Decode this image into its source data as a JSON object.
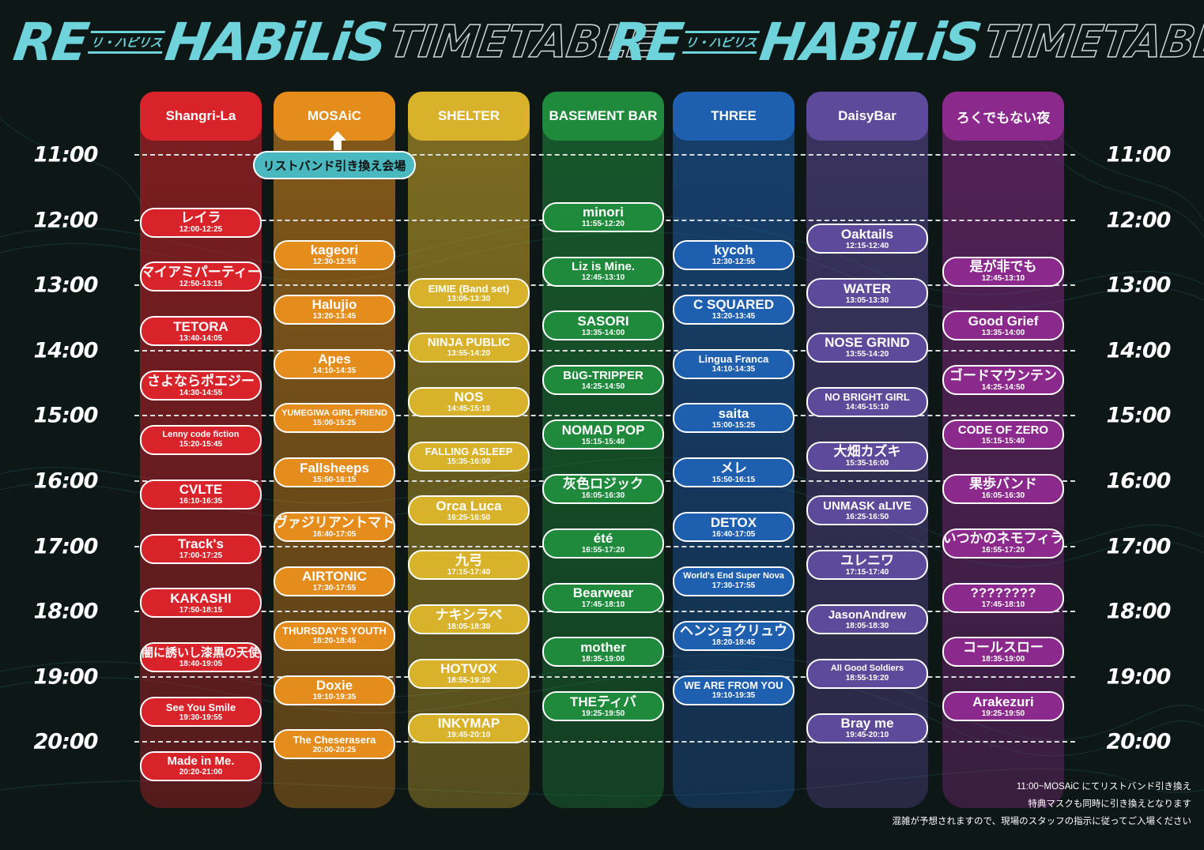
{
  "banner": {
    "logo_text": "RE",
    "logo_kana": "リ・ハビリス",
    "logo_rest": "HABiLiS",
    "timetable_word": "TIMETABLE"
  },
  "time_labels": [
    "11:00",
    "12:00",
    "13:00",
    "14:00",
    "15:00",
    "16:00",
    "17:00",
    "18:00",
    "19:00",
    "20:00"
  ],
  "stages": [
    {
      "name": "Shangri-La",
      "color": "#d8232a",
      "slots": [
        {
          "artist": "レイラ",
          "time": "12:00-12:25"
        },
        {
          "artist": "マイアミパーティー",
          "time": "12:50-13:15"
        },
        {
          "artist": "TETORA",
          "time": "13:40-14:05"
        },
        {
          "artist": "さよならポエジー",
          "time": "14:30-14:55"
        },
        {
          "artist": "Lenny code fiction",
          "time": "15:20-15:45"
        },
        {
          "artist": "CVLTE",
          "time": "16:10-16:35"
        },
        {
          "artist": "Track's",
          "time": "17:00-17:25"
        },
        {
          "artist": "KAKASHI",
          "time": "17:50-18:15"
        },
        {
          "artist": "夕闇に誘いし漆黒の天使達",
          "time": "18:40-19:05"
        },
        {
          "artist": "See You Smile",
          "time": "19:30-19:55"
        },
        {
          "artist": "Made in Me.",
          "time": "20:20-21:00"
        }
      ]
    },
    {
      "name": "MOSAiC",
      "color": "#e48c1c",
      "slots": [
        {
          "artist": "kageori",
          "time": "12:30-12:55"
        },
        {
          "artist": "Halujio",
          "time": "13:20-13:45"
        },
        {
          "artist": "Apes",
          "time": "14:10-14:35"
        },
        {
          "artist": "YUMEGIWA GIRL FRIEND",
          "time": "15:00-15:25"
        },
        {
          "artist": "Fallsheeps",
          "time": "15:50-16:15"
        },
        {
          "artist": "ヴァジリアントマト",
          "time": "16:40-17:05"
        },
        {
          "artist": "AIRTONIC",
          "time": "17:30-17:55"
        },
        {
          "artist": "THURSDAY'S YOUTH",
          "time": "18:20-18:45"
        },
        {
          "artist": "Doxie",
          "time": "19:10-19:35"
        },
        {
          "artist": "The Cheserasera",
          "time": "20:00-20:25"
        }
      ]
    },
    {
      "name": "SHELTER",
      "color": "#d9b22b",
      "slots": [
        {
          "artist": "EIMIE (Band set)",
          "time": "13:05-13:30"
        },
        {
          "artist": "NINJA PUBLIC",
          "time": "13:55-14:20"
        },
        {
          "artist": "NOS",
          "time": "14:45-15:10"
        },
        {
          "artist": "FALLING ASLEEP",
          "time": "15:35-16:00"
        },
        {
          "artist": "Orca Luca",
          "time": "16:25-16:50"
        },
        {
          "artist": "九弓",
          "time": "17:15-17:40"
        },
        {
          "artist": "ナキシラベ",
          "time": "18:05-18:30"
        },
        {
          "artist": "HOTVOX",
          "time": "18:55-19:20"
        },
        {
          "artist": "INKYMAP",
          "time": "19:45-20:10"
        }
      ]
    },
    {
      "name": "BASEMENT BAR",
      "color": "#1f8a3b",
      "slots": [
        {
          "artist": "minori",
          "time": "11:55-12:20"
        },
        {
          "artist": "Liz is Mine.",
          "time": "12:45-13:10"
        },
        {
          "artist": "SASORI",
          "time": "13:35-14:00"
        },
        {
          "artist": "BüG-TRIPPER",
          "time": "14:25-14:50"
        },
        {
          "artist": "NOMAD POP",
          "time": "15:15-15:40"
        },
        {
          "artist": "灰色ロジック",
          "time": "16:05-16:30"
        },
        {
          "artist": "été",
          "time": "16:55-17:20"
        },
        {
          "artist": "Bearwear",
          "time": "17:45-18:10"
        },
        {
          "artist": "mother",
          "time": "18:35-19:00"
        },
        {
          "artist": "THEティバ",
          "time": "19:25-19:50"
        }
      ]
    },
    {
      "name": "THREE",
      "color": "#1f5fb0",
      "slots": [
        {
          "artist": "kycoh",
          "time": "12:30-12:55"
        },
        {
          "artist": "C SQUARED",
          "time": "13:20-13:45"
        },
        {
          "artist": "Lingua Franca",
          "time": "14:10-14:35"
        },
        {
          "artist": "saita",
          "time": "15:00-15:25"
        },
        {
          "artist": "メレ",
          "time": "15:50-16:15"
        },
        {
          "artist": "DETOX",
          "time": "16:40-17:05"
        },
        {
          "artist": "World's End Super Nova",
          "time": "17:30-17:55"
        },
        {
          "artist": "ヘンショクリュウ",
          "time": "18:20-18:45"
        },
        {
          "artist": "WE ARE FROM YOU",
          "time": "19:10-19:35"
        }
      ]
    },
    {
      "name": "DaisyBar",
      "color": "#5e4a9a",
      "slots": [
        {
          "artist": "Oaktails",
          "time": "12:15-12:40"
        },
        {
          "artist": "WATER",
          "time": "13:05-13:30"
        },
        {
          "artist": "NOSE GRIND",
          "time": "13:55-14:20"
        },
        {
          "artist": "NO BRIGHT GIRL",
          "time": "14:45-15:10"
        },
        {
          "artist": "大畑カズキ",
          "time": "15:35-16:00"
        },
        {
          "artist": "UNMASK aLIVE",
          "time": "16:25-16:50"
        },
        {
          "artist": "ユレニワ",
          "time": "17:15-17:40"
        },
        {
          "artist": "JasonAndrew",
          "time": "18:05-18:30"
        },
        {
          "artist": "All Good Soldiers",
          "time": "18:55-19:20"
        },
        {
          "artist": "Bray me",
          "time": "19:45-20:10"
        }
      ]
    },
    {
      "name": "ろくでもない夜",
      "color": "#8b2a8c",
      "slots": [
        {
          "artist": "是が非でも",
          "time": "12:45-13:10"
        },
        {
          "artist": "Good Grief",
          "time": "13:35-14:00"
        },
        {
          "artist": "ゴードマウンテン",
          "time": "14:25-14:50"
        },
        {
          "artist": "CODE OF ZERO",
          "time": "15:15-15:40"
        },
        {
          "artist": "果歩バンド",
          "time": "16:05-16:30"
        },
        {
          "artist": "いつかのネモフィラ",
          "time": "16:55-17:20"
        },
        {
          "artist": "????????",
          "time": "17:45-18:10"
        },
        {
          "artist": "コールスロー",
          "time": "18:35-19:00"
        },
        {
          "artist": "Arakezuri",
          "time": "19:25-19:50"
        }
      ]
    }
  ],
  "wristband_label": "リストバンド引き換え会場",
  "colors": {
    "background": "#0d1716",
    "accent": "#6fd3dc",
    "wristband": "#4ab8bf"
  },
  "notes": [
    "11:00~MOSAiC にてリストバンド引き換え",
    "特典マスクも同時に引き換えとなります",
    "混雑が予想されますので、現場のスタッフの指示に従ってご入場ください"
  ]
}
